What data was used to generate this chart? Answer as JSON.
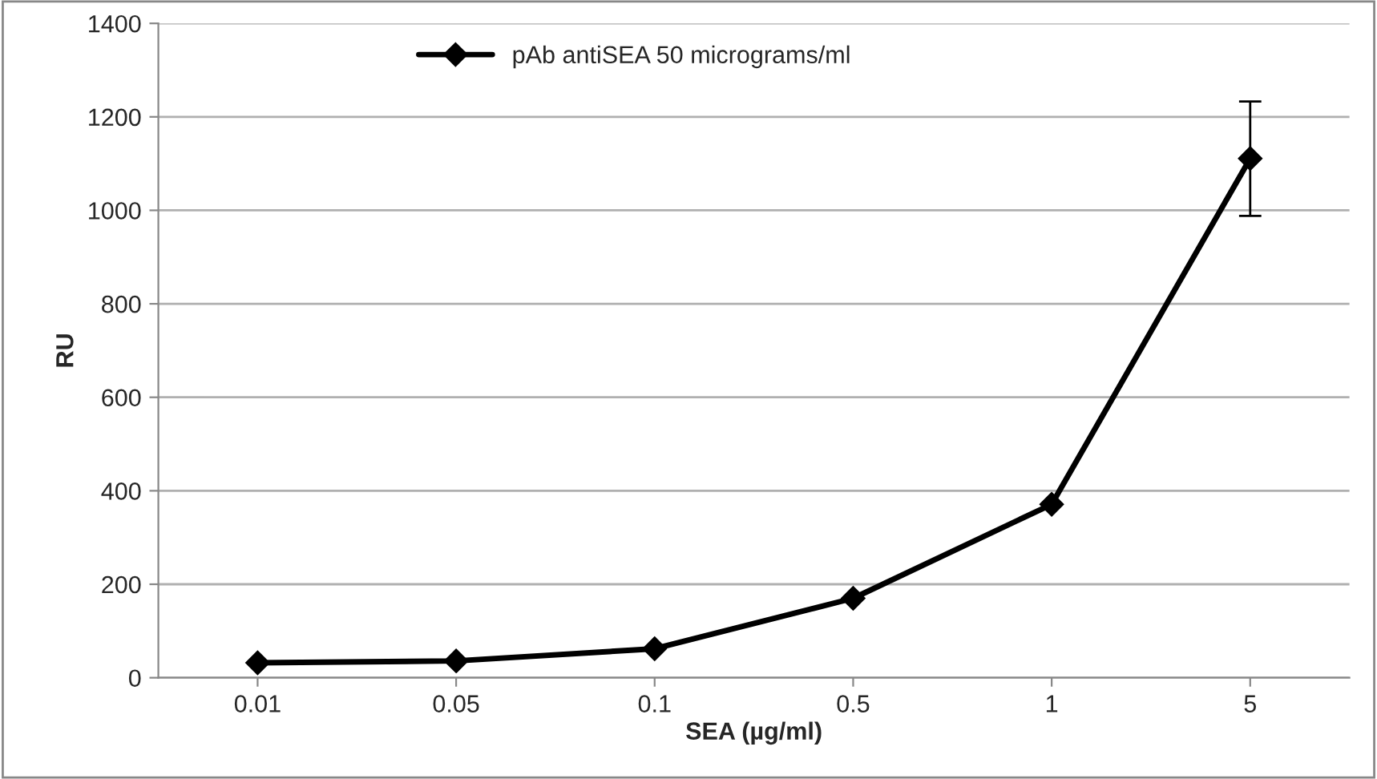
{
  "chart_data": {
    "type": "line",
    "xlabel": "SEA (µg/ml)",
    "ylabel": "RU",
    "categories": [
      "0.01",
      "0.05",
      "0.1",
      "0.5",
      "1",
      "5"
    ],
    "series": [
      {
        "name": "pAb antiSEA 50 micrograms/ml",
        "color": "#000000",
        "values": [
          32,
          36,
          62,
          170,
          371,
          1111
        ],
        "errors": [
          null,
          null,
          null,
          null,
          null,
          [
            988,
            1233
          ]
        ]
      }
    ],
    "ylim": [
      0,
      1400
    ],
    "yticks": [
      0,
      200,
      400,
      600,
      800,
      1000,
      1200,
      1400
    ],
    "grid": "y",
    "legend": "top",
    "marker": "diamond",
    "line_style": "solid"
  }
}
